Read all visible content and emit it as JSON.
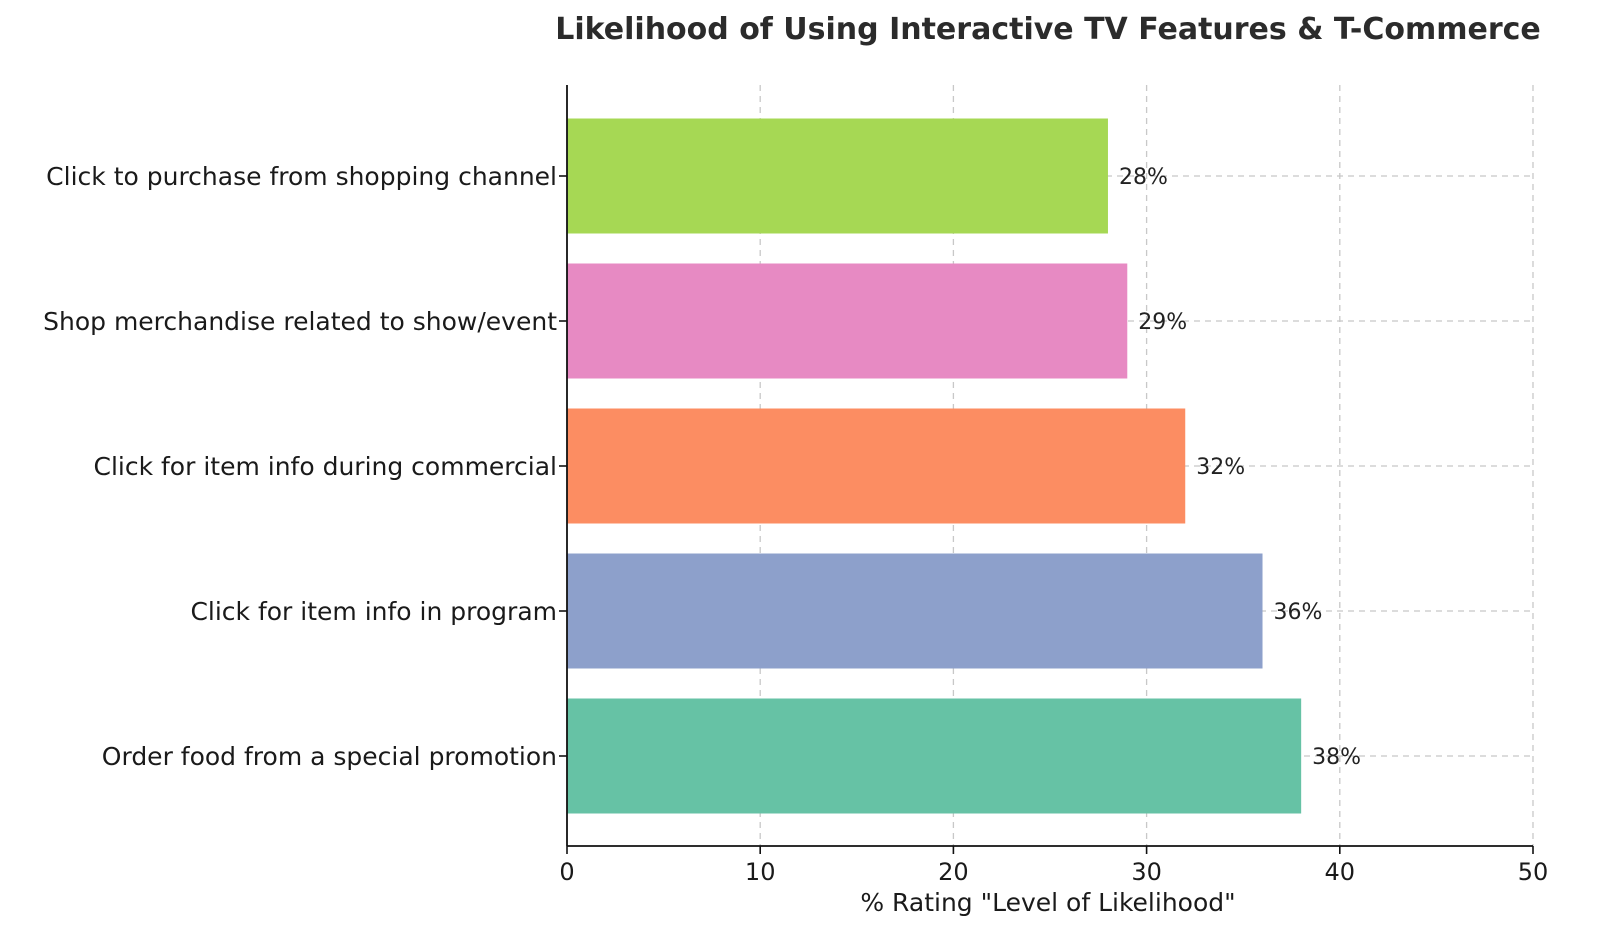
{
  "chart_data": {
    "type": "bar",
    "orientation": "horizontal",
    "title": "Likelihood of Using Interactive TV Features & T-Commerce",
    "xlabel": "% Rating \"Level of Likelihood\"",
    "ylabel": "",
    "xlim": [
      0,
      50
    ],
    "xticks": [
      0,
      10,
      20,
      30,
      40,
      50
    ],
    "grid": true,
    "categories": [
      "Order food from a special promotion",
      "Click for item info in program",
      "Click for item info during commercial",
      "Shop merchandise related to show/event",
      "Click to purchase from shopping channel"
    ],
    "values": [
      38,
      36,
      32,
      29,
      28
    ],
    "value_labels": [
      "38%",
      "36%",
      "32%",
      "29%",
      "28%"
    ],
    "colors": [
      "#66c2a5",
      "#8da0cb",
      "#fc8d62",
      "#e78ac3",
      "#a6d854"
    ]
  }
}
